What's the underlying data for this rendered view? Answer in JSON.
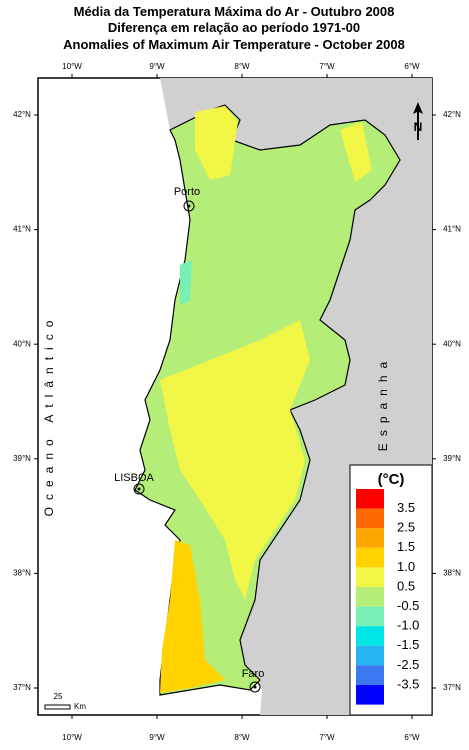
{
  "title_lines": [
    "Média da Temperatura Máxima do Ar - Outubro 2008",
    "Diferença em relação ao período 1971-00",
    "Anomalies of Maximum Air Temperature - October 2008"
  ],
  "longitudes": [
    "10°W",
    "9°W",
    "8°W",
    "7°W",
    "6°W"
  ],
  "latitudes": [
    "42°N",
    "41°N",
    "40°N",
    "39°N",
    "38°N",
    "37°N"
  ],
  "ocean_label": "Oceano Atlântico",
  "country_label": "Espanha",
  "cities": [
    "Porto",
    "LISBOA",
    "Faro"
  ],
  "north": "N",
  "scale": {
    "value": "25",
    "unit": "Km"
  },
  "legend": {
    "title": "(°C)",
    "colors": [
      "#ff0000",
      "#ff6a00",
      "#ffa500",
      "#ffd200",
      "#f0f546",
      "#b4ee78",
      "#78f0b4",
      "#00e6e6",
      "#28b4f0",
      "#3c78f0",
      "#0000ff"
    ],
    "labels": [
      "3.5",
      "2.5",
      "1.5",
      "1.0",
      "0.5",
      "-0.5",
      "-1.0",
      "-1.5",
      "-2.5",
      "-3.5"
    ]
  }
}
